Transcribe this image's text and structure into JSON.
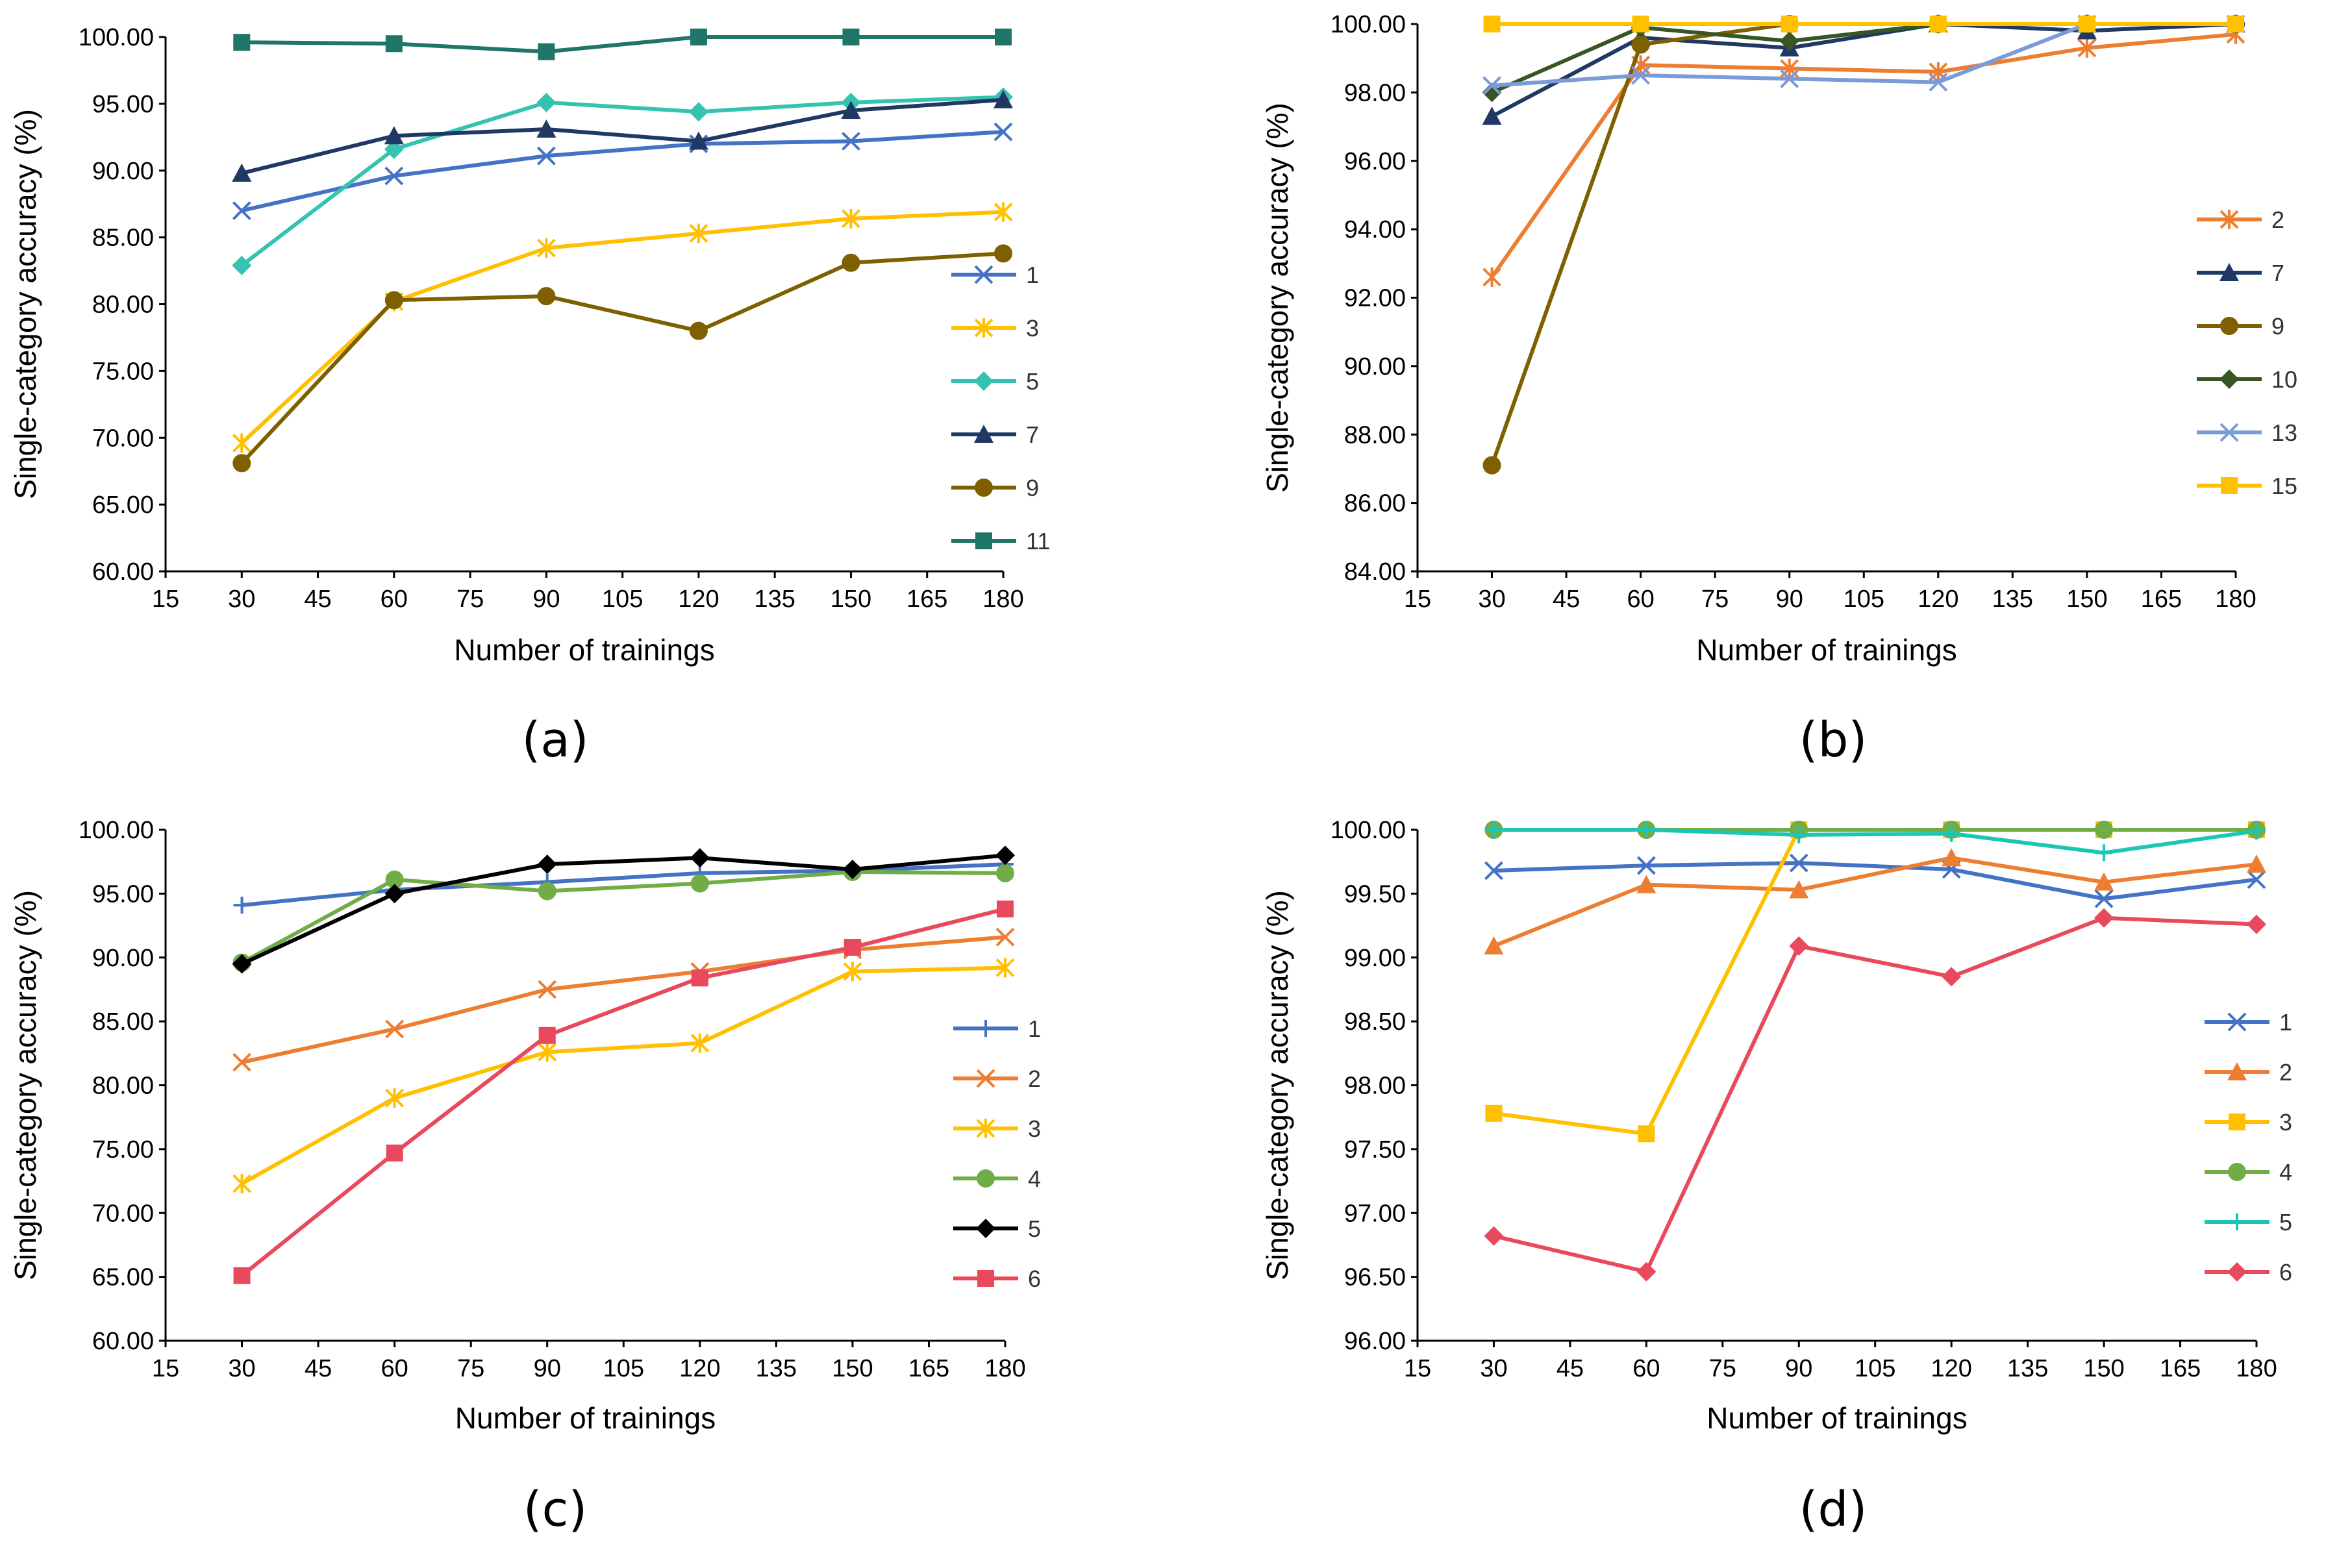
{
  "chart_data": [
    {
      "type": "line",
      "panel_label": "(a)",
      "xlabel": "Number of trainings",
      "ylabel": "Single-category accuracy (%)",
      "xlim": [
        15,
        180
      ],
      "ylim": [
        60,
        100
      ],
      "xticks": [
        "15",
        "30",
        "45",
        "60",
        "75",
        "90",
        "105",
        "120",
        "135",
        "150",
        "165",
        "180"
      ],
      "yticks": [
        "60.00",
        "65.00",
        "70.00",
        "75.00",
        "80.00",
        "85.00",
        "90.00",
        "95.00",
        "100.00"
      ],
      "x": [
        30,
        60,
        90,
        120,
        150,
        180
      ],
      "legend_position": "right",
      "series": [
        {
          "name": "1",
          "color": "#4472C4",
          "marker": "x",
          "values": [
            87.0,
            89.6,
            91.1,
            92.0,
            92.2,
            92.9
          ]
        },
        {
          "name": "3",
          "color": "#FFC000",
          "marker": "asterisk",
          "values": [
            69.6,
            80.2,
            84.2,
            85.3,
            86.4,
            86.9
          ]
        },
        {
          "name": "5",
          "color": "#33C3B0",
          "marker": "diamond",
          "values": [
            82.9,
            91.6,
            95.1,
            94.4,
            95.1,
            95.5
          ]
        },
        {
          "name": "7",
          "color": "#203864",
          "marker": "triangle",
          "values": [
            89.8,
            92.6,
            93.1,
            92.2,
            94.5,
            95.3
          ]
        },
        {
          "name": "9",
          "color": "#7F6000",
          "marker": "circle",
          "values": [
            68.1,
            80.3,
            80.6,
            78.0,
            83.1,
            83.8
          ]
        },
        {
          "name": "11",
          "color": "#1F7668",
          "marker": "square",
          "values": [
            99.6,
            99.5,
            98.9,
            100.0,
            100.0,
            100.0
          ]
        }
      ]
    },
    {
      "type": "line",
      "panel_label": "(b)",
      "xlabel": "Number of trainings",
      "ylabel": "Single-category accuracy (%)",
      "xlim": [
        15,
        180
      ],
      "ylim": [
        84,
        100
      ],
      "xticks": [
        "15",
        "30",
        "45",
        "60",
        "75",
        "90",
        "105",
        "120",
        "135",
        "150",
        "165",
        "180"
      ],
      "yticks": [
        "84.00",
        "86.00",
        "88.00",
        "90.00",
        "92.00",
        "94.00",
        "96.00",
        "98.00",
        "100.00"
      ],
      "x": [
        30,
        60,
        90,
        120,
        150,
        180
      ],
      "legend_position": "right",
      "series": [
        {
          "name": "2",
          "color": "#ED7D31",
          "marker": "asterisk",
          "values": [
            92.6,
            98.8,
            98.7,
            98.6,
            99.3,
            99.7
          ]
        },
        {
          "name": "7",
          "color": "#203864",
          "marker": "triangle",
          "values": [
            97.3,
            99.6,
            99.3,
            100.0,
            99.8,
            100.0
          ]
        },
        {
          "name": "9",
          "color": "#7F6000",
          "marker": "circle",
          "values": [
            87.1,
            99.4,
            100.0,
            100.0,
            100.0,
            100.0
          ]
        },
        {
          "name": "10",
          "color": "#375623",
          "marker": "diamond",
          "values": [
            98.0,
            99.9,
            99.5,
            100.0,
            100.0,
            100.0
          ]
        },
        {
          "name": "13",
          "color": "#7B9BD6",
          "marker": "x",
          "values": [
            98.2,
            98.5,
            98.4,
            98.3,
            100.0,
            100.0
          ]
        },
        {
          "name": "15",
          "color": "#FFC000",
          "marker": "square",
          "values": [
            100.0,
            100.0,
            100.0,
            100.0,
            100.0,
            100.0
          ]
        }
      ]
    },
    {
      "type": "line",
      "panel_label": "(c)",
      "xlabel": "Number of trainings",
      "ylabel": "Single-category accuracy (%)",
      "xlim": [
        15,
        180
      ],
      "ylim": [
        60,
        100
      ],
      "xticks": [
        "15",
        "30",
        "45",
        "60",
        "75",
        "90",
        "105",
        "120",
        "135",
        "150",
        "165",
        "180"
      ],
      "yticks": [
        "60.00",
        "65.00",
        "70.00",
        "75.00",
        "80.00",
        "85.00",
        "90.00",
        "95.00",
        "100.00"
      ],
      "x": [
        30,
        60,
        90,
        120,
        150,
        180
      ],
      "legend_position": "right",
      "series": [
        {
          "name": "1",
          "color": "#4472C4",
          "marker": "plus",
          "values": [
            94.1,
            95.3,
            95.9,
            96.6,
            96.8,
            97.3
          ]
        },
        {
          "name": "2",
          "color": "#ED7D31",
          "marker": "x",
          "values": [
            81.8,
            84.4,
            87.5,
            88.9,
            90.6,
            91.6
          ]
        },
        {
          "name": "3",
          "color": "#FFC000",
          "marker": "asterisk",
          "values": [
            72.3,
            79.0,
            82.6,
            83.3,
            88.9,
            89.2
          ]
        },
        {
          "name": "4",
          "color": "#70AD47",
          "marker": "circle",
          "values": [
            89.6,
            96.1,
            95.2,
            95.8,
            96.7,
            96.6
          ]
        },
        {
          "name": "5",
          "color": "#000000",
          "marker": "diamond",
          "values": [
            89.5,
            95.0,
            97.3,
            97.8,
            96.9,
            98.0
          ]
        },
        {
          "name": "6",
          "color": "#E8495C",
          "marker": "square",
          "values": [
            65.1,
            74.7,
            83.9,
            88.4,
            90.8,
            93.8
          ]
        }
      ]
    },
    {
      "type": "line",
      "panel_label": "(d)",
      "xlabel": "Number of trainings",
      "ylabel": "Single-category accuracy (%)",
      "xlim": [
        15,
        180
      ],
      "ylim": [
        96,
        100
      ],
      "xticks": [
        "15",
        "30",
        "45",
        "60",
        "75",
        "90",
        "105",
        "120",
        "135",
        "150",
        "165",
        "180"
      ],
      "yticks": [
        "96.00",
        "96.50",
        "97.00",
        "97.50",
        "98.00",
        "98.50",
        "99.00",
        "99.50",
        "100.00"
      ],
      "x": [
        30,
        60,
        90,
        120,
        150,
        180
      ],
      "legend_position": "right",
      "series": [
        {
          "name": "1",
          "color": "#4472C4",
          "marker": "x",
          "values": [
            99.68,
            99.72,
            99.74,
            99.69,
            99.46,
            99.61
          ]
        },
        {
          "name": "2",
          "color": "#ED7D31",
          "marker": "triangle",
          "values": [
            99.09,
            99.57,
            99.53,
            99.78,
            99.59,
            99.73
          ]
        },
        {
          "name": "3",
          "color": "#FFC000",
          "marker": "square",
          "values": [
            97.78,
            97.62,
            100.0,
            100.0,
            100.0,
            100.0
          ]
        },
        {
          "name": "4",
          "color": "#70AD47",
          "marker": "circle",
          "values": [
            100.0,
            100.0,
            100.0,
            100.0,
            100.0,
            100.0
          ]
        },
        {
          "name": "5",
          "color": "#1CC6B5",
          "marker": "plus",
          "values": [
            100.0,
            100.0,
            99.96,
            99.97,
            99.82,
            99.99
          ]
        },
        {
          "name": "6",
          "color": "#E8495C",
          "marker": "diamond",
          "values": [
            96.82,
            96.54,
            99.09,
            98.85,
            99.31,
            99.26
          ]
        }
      ]
    }
  ]
}
